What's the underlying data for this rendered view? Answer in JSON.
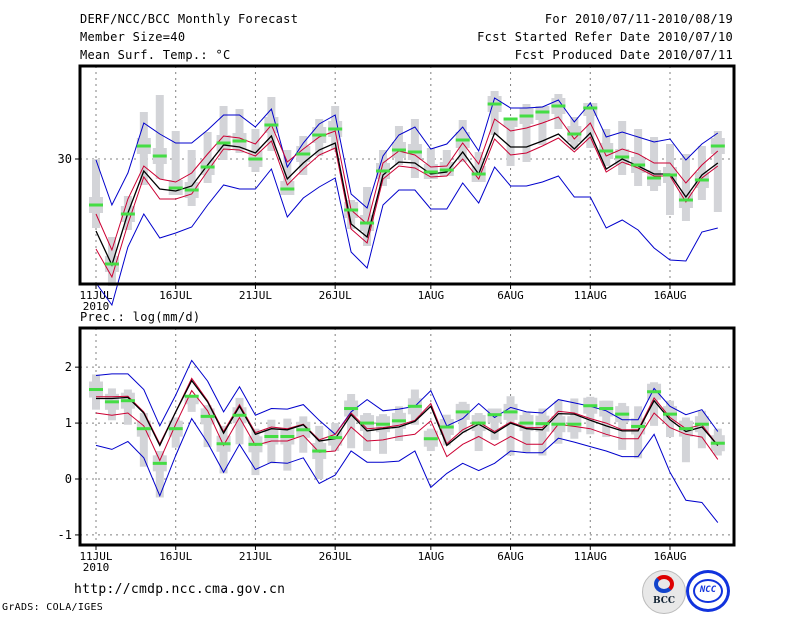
{
  "header": {
    "title": "DERF/NCC/BCC Monthly Forecast",
    "member_size": "Member Size=40",
    "variable_top": "Mean Surf. Temp.: °C",
    "period": "For 2010/07/11-2010/08/19",
    "started": "Fcst Started Refer Date 2010/07/10",
    "produced": "Fcst Produced Date 2010/07/11"
  },
  "footer": {
    "url": "http://cmdp.ncc.cma.gov.cn",
    "grads": "GrADS: COLA/IGES",
    "logo_bcc": "BCC",
    "logo_ncc": "NCC"
  },
  "colors": {
    "max_min": "#0000cc",
    "spread": "#cc0033",
    "mean": "#000000",
    "observed": "#44dd44",
    "box": "#d3d4d8",
    "grid": "#808080"
  },
  "chart_data": [
    {
      "type": "line",
      "title": "Mean Surf. Temp.: °C",
      "x": [
        "11JUL",
        "12JUL",
        "13JUL",
        "14JUL",
        "15JUL",
        "16JUL",
        "17JUL",
        "18JUL",
        "19JUL",
        "20JUL",
        "21JUL",
        "22JUL",
        "23JUL",
        "24JUL",
        "25JUL",
        "26JUL",
        "27JUL",
        "28JUL",
        "29JUL",
        "30JUL",
        "31JUL",
        "1AUG",
        "2AUG",
        "3AUG",
        "4AUG",
        "5AUG",
        "6AUG",
        "7AUG",
        "8AUG",
        "9AUG",
        "10AUG",
        "11AUG",
        "12AUG",
        "13AUG",
        "14AUG",
        "15AUG",
        "16AUG",
        "17AUG",
        "18AUG",
        "19AUG"
      ],
      "x_ticks": [
        "11JUL",
        "16JUL",
        "21JUL",
        "26JUL",
        "1AUG",
        "6AUG",
        "11AUG",
        "16AUG"
      ],
      "x_sub_label": "2010",
      "y_ticks": [
        30
      ],
      "ylim": [
        17.5,
        39.3
      ],
      "grid": true,
      "series": [
        {
          "name": "max",
          "values": [
            29.9,
            25.4,
            28.6,
            33.6,
            32.5,
            31.6,
            31.6,
            32.9,
            34.4,
            34.4,
            33.2,
            35.0,
            29.2,
            31.6,
            33.5,
            34.4,
            26.5,
            25.1,
            30.3,
            32.4,
            33.2,
            31.0,
            31.5,
            33.2,
            30.8,
            36.1,
            35.1,
            35.1,
            35.2,
            35.9,
            33.7,
            35.6,
            32.2,
            32.7,
            32.2,
            31.7,
            32.0,
            29.9,
            31.5,
            32.6
          ]
        },
        {
          "name": "upper",
          "values": [
            24.5,
            20.9,
            26.0,
            29.3,
            28.0,
            27.7,
            28.6,
            30.5,
            32.3,
            32.1,
            31.5,
            33.4,
            29.7,
            31.0,
            32.2,
            32.8,
            24.9,
            23.5,
            29.6,
            30.8,
            30.4,
            29.2,
            29.3,
            31.6,
            29.5,
            34.0,
            32.8,
            33.1,
            33.6,
            34.2,
            32.0,
            33.6,
            30.3,
            31.0,
            30.5,
            29.6,
            29.6,
            27.6,
            29.4,
            30.8
          ]
        },
        {
          "name": "mean",
          "values": [
            22.8,
            19.4,
            24.6,
            28.8,
            27.0,
            26.8,
            27.3,
            29.4,
            31.4,
            31.2,
            30.6,
            32.3,
            28.0,
            29.6,
            30.9,
            31.6,
            23.5,
            22.2,
            28.4,
            29.7,
            29.6,
            28.5,
            28.7,
            30.7,
            28.5,
            32.6,
            31.2,
            31.2,
            31.8,
            32.5,
            31.0,
            32.6,
            29.0,
            30.0,
            29.3,
            28.5,
            28.5,
            26.2,
            28.4,
            29.6
          ]
        },
        {
          "name": "lower",
          "values": [
            21.0,
            18.2,
            23.5,
            28.2,
            26.0,
            26.0,
            26.5,
            28.8,
            31.0,
            30.9,
            30.3,
            31.8,
            27.4,
            29.0,
            30.4,
            31.1,
            23.0,
            21.6,
            28.0,
            29.3,
            29.1,
            28.2,
            28.3,
            30.0,
            28.0,
            32.0,
            30.4,
            30.6,
            31.3,
            32.1,
            30.7,
            32.2,
            28.7,
            29.7,
            29.1,
            28.3,
            28.3,
            25.7,
            28.1,
            29.3
          ]
        },
        {
          "name": "min",
          "values": [
            17.6,
            15.4,
            21.2,
            24.5,
            22.1,
            22.6,
            23.2,
            25.4,
            27.4,
            27.0,
            27.0,
            29.0,
            24.2,
            26.1,
            27.2,
            28.1,
            20.7,
            19.1,
            25.4,
            26.9,
            26.9,
            25.0,
            25.0,
            27.6,
            25.6,
            29.2,
            27.3,
            27.3,
            27.7,
            28.3,
            26.2,
            26.2,
            23.1,
            23.9,
            22.9,
            21.1,
            19.9,
            19.8,
            22.7,
            23.1
          ]
        },
        {
          "name": "observed",
          "values": [
            25.4,
            19.5,
            24.5,
            31.3,
            30.3,
            27.1,
            26.9,
            29.2,
            31.6,
            31.8,
            30.0,
            33.4,
            27.0,
            30.5,
            32.4,
            33.0,
            24.9,
            23.6,
            28.8,
            30.9,
            30.7,
            28.7,
            28.9,
            31.9,
            28.5,
            35.5,
            34.0,
            34.3,
            34.7,
            35.3,
            32.5,
            35.1,
            30.8,
            30.2,
            29.4,
            28.1,
            28.4,
            25.9,
            27.9,
            31.3
          ]
        },
        {
          "name": "box_high",
          "values": [
            30.0,
            22.2,
            26.3,
            34.7,
            36.4,
            32.8,
            30.9,
            32.7,
            35.3,
            35.0,
            33.0,
            36.2,
            30.9,
            32.3,
            34.0,
            35.3,
            25.9,
            27.2,
            30.9,
            33.3,
            34.0,
            31.1,
            30.9,
            33.9,
            30.7,
            36.8,
            34.1,
            35.5,
            35.3,
            36.5,
            34.2,
            35.6,
            33.0,
            33.8,
            33.0,
            32.2,
            31.5,
            30.5,
            31.3,
            32.8
          ]
        },
        {
          "name": "box_low",
          "values": [
            23.1,
            17.3,
            22.9,
            27.4,
            28.0,
            26.4,
            25.3,
            27.6,
            29.9,
            30.6,
            28.7,
            30.8,
            26.4,
            28.4,
            30.3,
            30.9,
            23.0,
            21.3,
            27.3,
            29.4,
            28.1,
            28.0,
            28.3,
            29.7,
            27.7,
            32.4,
            29.3,
            29.7,
            31.4,
            33.0,
            30.9,
            31.1,
            29.3,
            28.4,
            27.3,
            26.8,
            24.4,
            23.8,
            25.9,
            24.7
          ]
        }
      ]
    },
    {
      "type": "line",
      "title": "Prec.: log(mm/d)",
      "x": [
        "11JUL",
        "12JUL",
        "13JUL",
        "14JUL",
        "15JUL",
        "16JUL",
        "17JUL",
        "18JUL",
        "19JUL",
        "20JUL",
        "21JUL",
        "22JUL",
        "23JUL",
        "24JUL",
        "25JUL",
        "26JUL",
        "27JUL",
        "28JUL",
        "29JUL",
        "30JUL",
        "31JUL",
        "1AUG",
        "2AUG",
        "3AUG",
        "4AUG",
        "5AUG",
        "6AUG",
        "7AUG",
        "8AUG",
        "9AUG",
        "10AUG",
        "11AUG",
        "12AUG",
        "13AUG",
        "14AUG",
        "15AUG",
        "16AUG",
        "17AUG",
        "18AUG",
        "19AUG"
      ],
      "x_ticks": [
        "11JUL",
        "16JUL",
        "21JUL",
        "26JUL",
        "1AUG",
        "6AUG",
        "11AUG",
        "16AUG"
      ],
      "x_sub_label": "2010",
      "y_ticks": [
        -1,
        0,
        1,
        2
      ],
      "ylim": [
        -1.18,
        2.7
      ],
      "grid": true,
      "series": [
        {
          "name": "max",
          "values": [
            1.85,
            1.88,
            1.88,
            1.6,
            0.95,
            1.5,
            2.12,
            1.75,
            1.2,
            1.65,
            1.14,
            1.26,
            1.25,
            1.33,
            1.05,
            0.8,
            1.2,
            1.42,
            1.22,
            1.25,
            1.3,
            1.58,
            0.95,
            1.08,
            1.35,
            1.1,
            1.28,
            1.2,
            1.18,
            1.42,
            1.36,
            1.3,
            1.22,
            1.06,
            1.06,
            1.62,
            1.3,
            1.15,
            1.24,
            0.85
          ]
        },
        {
          "name": "upper",
          "values": [
            1.47,
            1.47,
            1.48,
            1.2,
            0.63,
            1.2,
            1.8,
            1.4,
            0.85,
            1.33,
            0.83,
            0.93,
            0.9,
            0.98,
            0.7,
            0.8,
            1.18,
            0.9,
            0.92,
            0.96,
            1.05,
            1.35,
            0.63,
            0.88,
            1.02,
            0.85,
            1.02,
            0.92,
            0.92,
            1.21,
            1.18,
            1.08,
            1.0,
            0.88,
            0.88,
            1.45,
            1.1,
            0.9,
            0.97,
            0.6
          ]
        },
        {
          "name": "mean",
          "values": [
            1.44,
            1.44,
            1.46,
            1.18,
            0.6,
            1.2,
            1.76,
            1.38,
            0.82,
            1.3,
            0.8,
            0.9,
            0.88,
            0.97,
            0.68,
            0.72,
            1.15,
            0.86,
            0.9,
            0.93,
            1.03,
            1.3,
            0.6,
            0.83,
            0.98,
            0.82,
            1.0,
            0.9,
            0.88,
            1.17,
            1.16,
            1.05,
            0.95,
            0.86,
            0.86,
            1.4,
            1.06,
            0.85,
            0.93,
            0.6
          ]
        },
        {
          "name": "lower",
          "values": [
            1.18,
            1.14,
            1.18,
            0.95,
            0.33,
            0.98,
            1.58,
            1.22,
            0.6,
            1.1,
            0.6,
            0.68,
            0.68,
            0.78,
            0.48,
            0.5,
            0.93,
            0.68,
            0.7,
            0.76,
            0.8,
            1.04,
            0.4,
            0.62,
            0.76,
            0.6,
            0.76,
            0.62,
            0.62,
            0.98,
            0.94,
            0.9,
            0.8,
            0.72,
            0.72,
            1.18,
            0.92,
            0.8,
            0.75,
            0.35
          ]
        },
        {
          "name": "min",
          "values": [
            0.6,
            0.53,
            0.67,
            0.38,
            -0.3,
            0.42,
            1.08,
            0.65,
            0.12,
            0.62,
            0.17,
            0.3,
            0.28,
            0.38,
            -0.08,
            0.07,
            0.5,
            0.3,
            0.3,
            0.32,
            0.5,
            -0.15,
            0.1,
            0.28,
            0.15,
            0.28,
            0.5,
            0.47,
            0.47,
            0.73,
            0.66,
            0.58,
            0.5,
            0.4,
            0.4,
            0.8,
            0.12,
            -0.38,
            -0.42,
            -0.78
          ]
        },
        {
          "name": "observed",
          "values": [
            1.6,
            1.38,
            1.4,
            0.9,
            0.28,
            0.9,
            1.48,
            1.12,
            0.63,
            1.14,
            0.62,
            0.76,
            0.76,
            0.88,
            0.5,
            0.74,
            1.26,
            1.0,
            0.98,
            1.04,
            1.3,
            0.72,
            0.93,
            1.2,
            1.0,
            1.15,
            1.2,
            1.0,
            0.99,
            0.98,
            0.98,
            1.31,
            1.26,
            1.16,
            0.94,
            1.56,
            1.16,
            0.9,
            0.98,
            0.64
          ]
        },
        {
          "name": "box_high",
          "values": [
            1.87,
            1.62,
            1.6,
            1.18,
            0.5,
            1.1,
            1.5,
            1.32,
            0.95,
            1.45,
            0.9,
            1.06,
            1.08,
            1.12,
            0.95,
            1.0,
            1.52,
            1.18,
            1.16,
            1.3,
            1.6,
            0.9,
            1.15,
            1.38,
            1.18,
            1.26,
            1.48,
            1.2,
            1.26,
            1.4,
            1.44,
            1.47,
            1.4,
            1.36,
            1.3,
            1.73,
            1.4,
            1.1,
            1.22,
            0.9
          ]
        },
        {
          "name": "box_low",
          "values": [
            1.24,
            1.05,
            0.97,
            0.22,
            -0.33,
            0.56,
            1.2,
            0.57,
            0.1,
            0.62,
            0.07,
            0.28,
            0.15,
            0.47,
            0.0,
            0.5,
            0.55,
            0.5,
            0.45,
            0.68,
            0.97,
            0.5,
            0.6,
            0.83,
            0.5,
            0.7,
            0.42,
            0.48,
            0.42,
            0.63,
            0.72,
            0.8,
            0.75,
            0.52,
            0.37,
            0.95,
            0.75,
            0.3,
            0.55,
            0.42
          ]
        }
      ]
    }
  ]
}
